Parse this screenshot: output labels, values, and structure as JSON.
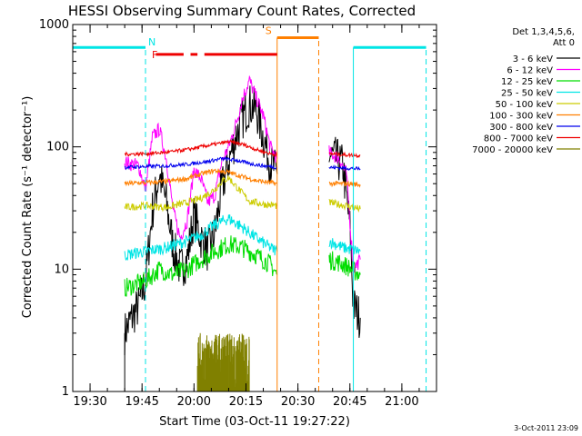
{
  "chart_data": {
    "type": "line",
    "title": "HESSI Observing Summary Count Rates, Corrected",
    "xlabel": "Start Time (03-Oct-11 19:27:22)",
    "ylabel": "Corrected Count Rate (s⁻¹ detector⁻¹)",
    "y_scale": "log",
    "ylim": [
      1,
      1000
    ],
    "xlim": [
      "19:25",
      "21:10"
    ],
    "x_ticks": [
      "19:30",
      "19:45",
      "20:00",
      "20:15",
      "20:30",
      "20:45",
      "21:00"
    ],
    "y_ticks": [
      {
        "value": 1,
        "label": "1"
      },
      {
        "value": 10,
        "label": "10"
      },
      {
        "value": 100,
        "label": "100"
      },
      {
        "value": 1000,
        "label": "1000"
      }
    ],
    "legend_header": [
      "Det 1,3,4,5,6,",
      "Att 0"
    ],
    "legend_placement": "right",
    "timestamp": "3-Oct-2011 23:09",
    "gaps": [
      {
        "start": "19:26",
        "end": "19:40"
      },
      {
        "start": "20:24",
        "end": "20:39"
      },
      {
        "start": "20:54",
        "end": "21:08"
      }
    ],
    "flags": [
      {
        "label": "N",
        "color": "#00e5e5",
        "level": 650,
        "segments": [
          [
            "19:25",
            "19:46"
          ],
          [
            "20:46",
            "21:07"
          ]
        ]
      },
      {
        "label": "F",
        "color": "#ee0000",
        "level": 570,
        "dashed_segments": [
          [
            "19:49",
            "19:57"
          ],
          [
            "19:59",
            "20:01"
          ],
          [
            "20:03",
            "20:24"
          ]
        ]
      },
      {
        "label": "S",
        "color": "#ff7f00",
        "level": 780,
        "segments": [
          [
            "20:24",
            "20:36"
          ]
        ]
      }
    ],
    "vlines": [
      {
        "time": "19:46",
        "color": "#00e5e5",
        "style": "dashed",
        "from": 1,
        "to": 650
      },
      {
        "time": "21:07",
        "color": "#00e5e5",
        "style": "dashed",
        "from": 1,
        "to": 650
      },
      {
        "time": "20:46",
        "color": "#00e5e5",
        "style": "solid",
        "from": 1,
        "to": 650
      },
      {
        "time": "20:24",
        "color": "#ff7f00",
        "style": "solid",
        "from": 1,
        "to": 780
      },
      {
        "time": "20:36",
        "color": "#ff7f00",
        "style": "dashed",
        "from": 1,
        "to": 780
      },
      {
        "time": "19:40",
        "color": "#000000",
        "style": "solid",
        "from": 1,
        "to": 3
      }
    ],
    "series": [
      {
        "name": "3 - 6 keV",
        "color": "#000000",
        "noise": 0.18,
        "points": [
          [
            "19:40",
            3
          ],
          [
            "19:42",
            4
          ],
          [
            "19:44",
            5
          ],
          [
            "19:46",
            8
          ],
          [
            "19:48",
            30
          ],
          [
            "19:50",
            60
          ],
          [
            "19:52",
            35
          ],
          [
            "19:54",
            15
          ],
          [
            "19:56",
            10
          ],
          [
            "19:58",
            12
          ],
          [
            "20:00",
            28
          ],
          [
            "20:02",
            18
          ],
          [
            "20:04",
            14
          ],
          [
            "20:06",
            20
          ],
          [
            "20:08",
            45
          ],
          [
            "20:10",
            75
          ],
          [
            "20:12",
            120
          ],
          [
            "20:14",
            170
          ],
          [
            "20:16",
            220
          ],
          [
            "20:18",
            200
          ],
          [
            "20:20",
            120
          ],
          [
            "20:22",
            75
          ],
          [
            "20:24",
            60
          ],
          null,
          [
            "20:39",
            85
          ],
          [
            "20:41",
            80
          ],
          [
            "20:43",
            70
          ],
          [
            "20:45",
            22
          ],
          [
            "20:46",
            5
          ],
          [
            "20:48",
            4
          ]
        ]
      },
      {
        "name": "6 - 12 keV",
        "color": "#ff00ff",
        "noise": 0.06,
        "points": [
          [
            "19:40",
            75
          ],
          [
            "19:44",
            70
          ],
          [
            "19:46",
            45
          ],
          [
            "19:48",
            120
          ],
          [
            "19:50",
            140
          ],
          [
            "19:52",
            80
          ],
          [
            "19:54",
            30
          ],
          [
            "19:56",
            18
          ],
          [
            "19:58",
            25
          ],
          [
            "20:00",
            65
          ],
          [
            "20:02",
            55
          ],
          [
            "20:04",
            35
          ],
          [
            "20:06",
            40
          ],
          [
            "20:08",
            75
          ],
          [
            "20:10",
            100
          ],
          [
            "20:12",
            150
          ],
          [
            "20:14",
            250
          ],
          [
            "20:16",
            350
          ],
          [
            "20:18",
            250
          ],
          [
            "20:20",
            180
          ],
          [
            "20:22",
            100
          ],
          [
            "20:24",
            80
          ],
          null,
          [
            "20:39",
            90
          ],
          [
            "20:42",
            80
          ],
          [
            "20:44",
            60
          ],
          [
            "20:46",
            10
          ],
          [
            "20:48",
            12
          ]
        ]
      },
      {
        "name": "12 - 25 keV",
        "color": "#00dd00",
        "noise": 0.08,
        "points": [
          [
            "19:40",
            7
          ],
          [
            "19:46",
            8
          ],
          [
            "19:50",
            10
          ],
          [
            "19:54",
            9
          ],
          [
            "19:58",
            10
          ],
          [
            "20:02",
            12
          ],
          [
            "20:06",
            14
          ],
          [
            "20:10",
            16
          ],
          [
            "20:14",
            15
          ],
          [
            "20:18",
            13
          ],
          [
            "20:22",
            11
          ],
          [
            "20:24",
            9
          ],
          null,
          [
            "20:39",
            12
          ],
          [
            "20:43",
            11
          ],
          [
            "20:48",
            9
          ]
        ]
      },
      {
        "name": "25 - 50 keV",
        "color": "#00e5e5",
        "noise": 0.05,
        "points": [
          [
            "19:40",
            13
          ],
          [
            "19:46",
            14
          ],
          [
            "19:52",
            15
          ],
          [
            "19:58",
            17
          ],
          [
            "20:02",
            19
          ],
          [
            "20:06",
            23
          ],
          [
            "20:10",
            26
          ],
          [
            "20:14",
            22
          ],
          [
            "20:18",
            18
          ],
          [
            "20:22",
            15
          ],
          [
            "20:24",
            14
          ],
          null,
          [
            "20:39",
            17
          ],
          [
            "20:43",
            15
          ],
          [
            "20:48",
            14
          ]
        ]
      },
      {
        "name": "50 - 100 keV",
        "color": "#cccc00",
        "noise": 0.03,
        "points": [
          [
            "19:40",
            32
          ],
          [
            "19:46",
            33
          ],
          [
            "19:52",
            32
          ],
          [
            "19:58",
            35
          ],
          [
            "20:02",
            38
          ],
          [
            "20:06",
            45
          ],
          [
            "20:08",
            52
          ],
          [
            "20:10",
            56
          ],
          [
            "20:12",
            48
          ],
          [
            "20:16",
            36
          ],
          [
            "20:20",
            34
          ],
          [
            "20:24",
            33
          ],
          null,
          [
            "20:39",
            35
          ],
          [
            "20:44",
            33
          ],
          [
            "20:48",
            31
          ]
        ]
      },
      {
        "name": "100 - 300 keV",
        "color": "#ff7f00",
        "noise": 0.02,
        "points": [
          [
            "19:40",
            50
          ],
          [
            "19:46",
            51
          ],
          [
            "19:52",
            52
          ],
          [
            "19:58",
            55
          ],
          [
            "20:02",
            60
          ],
          [
            "20:06",
            64
          ],
          [
            "20:10",
            62
          ],
          [
            "20:14",
            57
          ],
          [
            "20:18",
            53
          ],
          [
            "20:22",
            51
          ],
          [
            "20:24",
            50
          ],
          null,
          [
            "20:39",
            50
          ],
          [
            "20:44",
            50
          ],
          [
            "20:48",
            49
          ]
        ]
      },
      {
        "name": "300 - 800 keV",
        "color": "#0000ee",
        "noise": 0.015,
        "points": [
          [
            "19:40",
            68
          ],
          [
            "19:46",
            69
          ],
          [
            "19:52",
            70
          ],
          [
            "19:58",
            72
          ],
          [
            "20:04",
            76
          ],
          [
            "20:08",
            80
          ],
          [
            "20:12",
            78
          ],
          [
            "20:16",
            73
          ],
          [
            "20:20",
            70
          ],
          [
            "20:24",
            68
          ],
          null,
          [
            "20:39",
            68
          ],
          [
            "20:44",
            67
          ],
          [
            "20:48",
            66
          ]
        ]
      },
      {
        "name": "800 - 7000 keV",
        "color": "#ee0000",
        "noise": 0.015,
        "points": [
          [
            "19:40",
            87
          ],
          [
            "19:46",
            88
          ],
          [
            "19:52",
            90
          ],
          [
            "19:58",
            95
          ],
          [
            "20:02",
            100
          ],
          [
            "20:06",
            105
          ],
          [
            "20:10",
            110
          ],
          [
            "20:14",
            105
          ],
          [
            "20:18",
            95
          ],
          [
            "20:22",
            88
          ],
          [
            "20:24",
            86
          ],
          null,
          [
            "20:39",
            88
          ],
          [
            "20:44",
            86
          ],
          [
            "20:48",
            85
          ]
        ]
      },
      {
        "name": "7000 - 20000 keV",
        "color": "#808000",
        "bars": {
          "start": "20:01",
          "end": "20:16",
          "max": 3
        }
      }
    ]
  }
}
